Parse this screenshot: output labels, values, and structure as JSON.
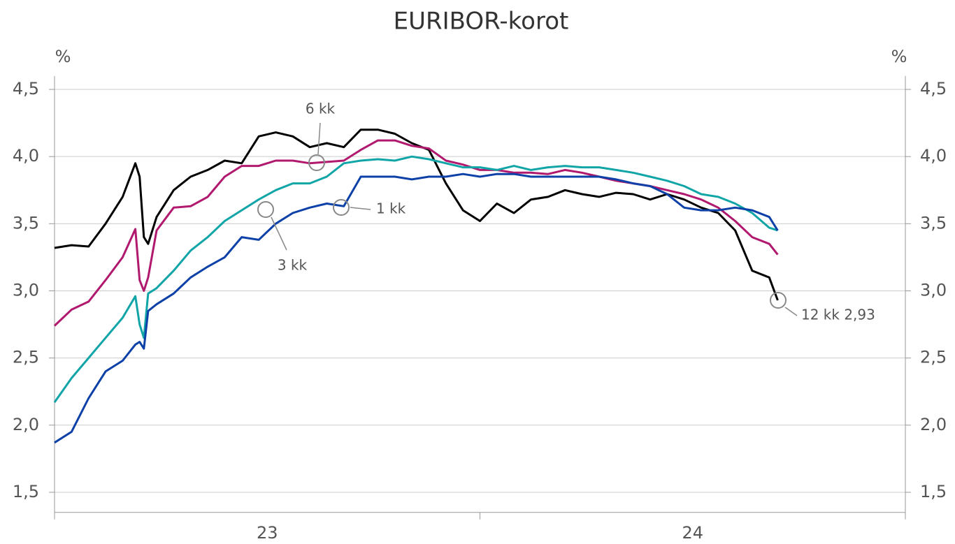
{
  "chart_data": {
    "type": "line",
    "title": "EURIBOR-korot",
    "y_label": "%",
    "y2_label": "%",
    "x": [
      23.0,
      23.04,
      23.08,
      23.12,
      23.16,
      23.19,
      23.2,
      23.21,
      23.22,
      23.24,
      23.28,
      23.32,
      23.36,
      23.4,
      23.44,
      23.48,
      23.52,
      23.56,
      23.6,
      23.64,
      23.68,
      23.72,
      23.76,
      23.8,
      23.84,
      23.88,
      23.92,
      23.96,
      24.0,
      24.04,
      24.08,
      24.12,
      24.16,
      24.2,
      24.24,
      24.28,
      24.32,
      24.36,
      24.4,
      24.44,
      24.48,
      24.52,
      24.56,
      24.6,
      24.64,
      24.68,
      24.7
    ],
    "series": [
      {
        "name": "12 kk",
        "color": "#000000",
        "values": [
          3.32,
          3.34,
          3.33,
          3.5,
          3.7,
          3.95,
          3.85,
          3.4,
          3.35,
          3.55,
          3.75,
          3.85,
          3.9,
          3.97,
          3.95,
          4.15,
          4.18,
          4.15,
          4.07,
          4.1,
          4.07,
          4.2,
          4.2,
          4.17,
          4.1,
          4.05,
          3.8,
          3.6,
          3.52,
          3.65,
          3.58,
          3.68,
          3.7,
          3.75,
          3.72,
          3.7,
          3.73,
          3.72,
          3.68,
          3.72,
          3.68,
          3.62,
          3.58,
          3.45,
          3.15,
          3.1,
          2.93
        ]
      },
      {
        "name": "6 kk",
        "color": "#b0196e",
        "values": [
          2.74,
          2.86,
          2.92,
          3.08,
          3.25,
          3.46,
          3.08,
          3.0,
          3.1,
          3.45,
          3.62,
          3.63,
          3.7,
          3.85,
          3.93,
          3.93,
          3.97,
          3.97,
          3.95,
          3.96,
          3.97,
          4.05,
          4.12,
          4.12,
          4.08,
          4.06,
          3.97,
          3.94,
          3.9,
          3.9,
          3.88,
          3.88,
          3.87,
          3.9,
          3.88,
          3.85,
          3.82,
          3.8,
          3.78,
          3.75,
          3.72,
          3.68,
          3.62,
          3.52,
          3.4,
          3.35,
          3.27
        ]
      },
      {
        "name": "3 kk",
        "color": "#12a5a8",
        "values": [
          2.17,
          2.35,
          2.5,
          2.65,
          2.8,
          2.96,
          2.75,
          2.65,
          2.98,
          3.02,
          3.15,
          3.3,
          3.4,
          3.52,
          3.6,
          3.68,
          3.75,
          3.8,
          3.8,
          3.85,
          3.95,
          3.97,
          3.98,
          3.97,
          4.0,
          3.98,
          3.95,
          3.92,
          3.92,
          3.9,
          3.93,
          3.9,
          3.92,
          3.93,
          3.92,
          3.92,
          3.9,
          3.88,
          3.85,
          3.82,
          3.78,
          3.72,
          3.7,
          3.65,
          3.58,
          3.47,
          3.45
        ]
      },
      {
        "name": "1 kk",
        "color": "#0d41a8",
        "values": [
          1.87,
          1.95,
          2.2,
          2.4,
          2.48,
          2.6,
          2.62,
          2.57,
          2.85,
          2.9,
          2.98,
          3.1,
          3.18,
          3.25,
          3.4,
          3.38,
          3.5,
          3.58,
          3.62,
          3.65,
          3.63,
          3.85,
          3.85,
          3.85,
          3.83,
          3.85,
          3.85,
          3.87,
          3.85,
          3.87,
          3.87,
          3.85,
          3.85,
          3.85,
          3.85,
          3.85,
          3.83,
          3.8,
          3.78,
          3.72,
          3.62,
          3.6,
          3.6,
          3.62,
          3.6,
          3.55,
          3.45
        ]
      }
    ],
    "annotations": [
      "6 kk",
      "3 kk",
      "1 kk",
      "12 kk 2,93"
    ],
    "xlim": [
      23,
      25
    ],
    "xticks": [
      23,
      24,
      25
    ],
    "xtick_labels": [
      {
        "value": 23.5,
        "label": "23"
      },
      {
        "value": 24.5,
        "label": "24"
      }
    ],
    "ylim": [
      1.35,
      4.6
    ],
    "yticks": [
      {
        "value": 1.5,
        "label": "1,5"
      },
      {
        "value": 2.0,
        "label": "2,0"
      },
      {
        "value": 2.5,
        "label": "2,5"
      },
      {
        "value": 3.0,
        "label": "3,0"
      },
      {
        "value": 3.5,
        "label": "3,5"
      },
      {
        "value": 4.0,
        "label": "4,0"
      },
      {
        "value": 4.5,
        "label": "4,5"
      }
    ],
    "y2lim": [
      1.35,
      4.6
    ],
    "y2ticks": [
      {
        "value": 1.5,
        "label": "1,5"
      },
      {
        "value": 2.0,
        "label": "2,0"
      },
      {
        "value": 2.5,
        "label": "2,5"
      },
      {
        "value": 3.0,
        "label": "3,0"
      },
      {
        "value": 3.5,
        "label": "3,5"
      },
      {
        "value": 4.0,
        "label": "4,0"
      },
      {
        "value": 4.5,
        "label": "4,5"
      }
    ],
    "grid": true
  }
}
